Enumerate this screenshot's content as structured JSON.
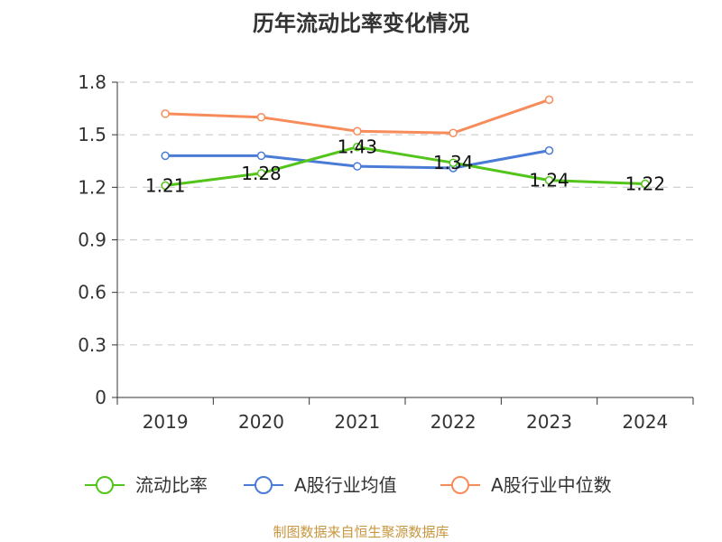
{
  "chart_data": {
    "type": "line",
    "title": "历年流动比率变化情况",
    "categories": [
      "2019",
      "2020",
      "2021",
      "2022",
      "2023",
      "2024"
    ],
    "yticks": [
      "0",
      "0.3",
      "0.6",
      "0.9",
      "1.2",
      "1.5",
      "1.8"
    ],
    "ylim": [
      0,
      1.8
    ],
    "grid": true,
    "legend_position": "bottom",
    "series": [
      {
        "name": "流动比率",
        "color": "#52c41a",
        "values": [
          1.21,
          1.28,
          1.43,
          1.34,
          1.24,
          1.22
        ],
        "labels": [
          "1.21",
          "1.28",
          "1.43",
          "1.34",
          "1.24",
          "1.22"
        ]
      },
      {
        "name": "A股行业均值",
        "color": "#4a7bd6",
        "values": [
          1.38,
          1.38,
          1.32,
          1.31,
          1.41,
          null
        ]
      },
      {
        "name": "A股行业中位数",
        "color": "#f78c5a",
        "values": [
          1.62,
          1.6,
          1.52,
          1.51,
          1.7,
          null
        ]
      }
    ]
  },
  "source_text": "制图数据来自恒生聚源数据库",
  "source_color": "#c8963e"
}
